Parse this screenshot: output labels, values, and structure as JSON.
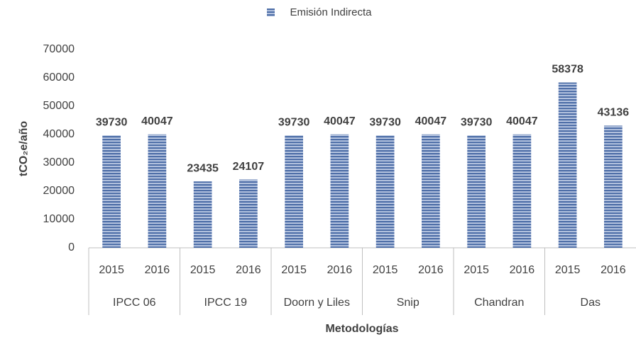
{
  "chart_data": {
    "type": "bar",
    "legend": "Emisión Indirecta",
    "x_label": "Metodologías",
    "y_label": "tCO₂e/año",
    "groups": [
      "IPCC 06",
      "IPCC 19",
      "Doorn y Liles",
      "Snip",
      "Chandran",
      "Das"
    ],
    "categories": [
      "2015",
      "2016",
      "2015",
      "2016",
      "2015",
      "2016",
      "2015",
      "2016",
      "2015",
      "2016",
      "2015",
      "2016"
    ],
    "values": [
      39730,
      40047,
      23435,
      24107,
      39730,
      40047,
      39730,
      40047,
      39730,
      40047,
      58378,
      43136
    ],
    "color": "#4f6fa8",
    "ylim": [
      0,
      70000
    ],
    "yticks": [
      0,
      10000,
      20000,
      30000,
      40000,
      50000,
      60000,
      70000
    ],
    "grid": false
  }
}
